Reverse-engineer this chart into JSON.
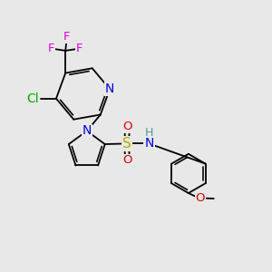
{
  "bg": "#e8e8e8",
  "col": {
    "C": "#000000",
    "N": "#0000dd",
    "O": "#dd0000",
    "F": "#dd00dd",
    "Cl": "#00aa00",
    "S": "#bbaa00",
    "H": "#559999"
  },
  "bw": 1.3,
  "fs": 9.5,
  "xlim": [
    0,
    10
  ],
  "ylim": [
    0,
    10
  ],
  "figsize": [
    3.0,
    3.0
  ],
  "dpi": 100
}
